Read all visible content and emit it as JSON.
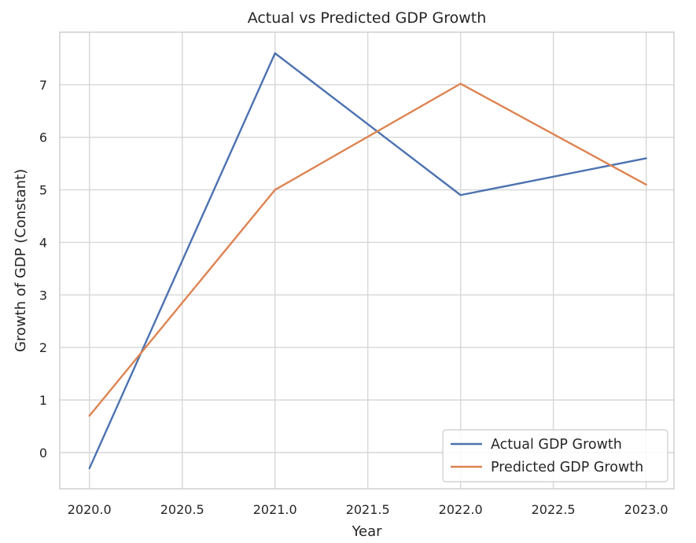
{
  "chart_data": {
    "type": "line",
    "title": "Actual vs Predicted GDP Growth",
    "xlabel": "Year",
    "ylabel": "Growth of GDP (Constant)",
    "x": [
      2020.0,
      2021.0,
      2022.0,
      2023.0
    ],
    "series": [
      {
        "name": "Actual GDP Growth",
        "values": [
          -0.3,
          7.6,
          4.9,
          5.6
        ],
        "color": "#4C72B0"
      },
      {
        "name": "Predicted GDP Growth",
        "values": [
          0.7,
          5.0,
          7.02,
          5.1
        ],
        "color": "#DD8452"
      }
    ],
    "xlim": [
      2019.84,
      2023.15
    ],
    "ylim": [
      -0.69,
      8.0
    ],
    "xticks": [
      2020.0,
      2020.5,
      2021.0,
      2021.5,
      2022.0,
      2022.5,
      2023.0
    ],
    "xtick_labels": [
      "2020.0",
      "2020.5",
      "2021.0",
      "2021.5",
      "2022.0",
      "2022.5",
      "2023.0"
    ],
    "yticks": [
      0,
      1,
      2,
      3,
      4,
      5,
      6,
      7
    ],
    "ytick_labels": [
      "0",
      "1",
      "2",
      "3",
      "4",
      "5",
      "6",
      "7"
    ],
    "grid": true,
    "legend_position": "lower-right"
  }
}
